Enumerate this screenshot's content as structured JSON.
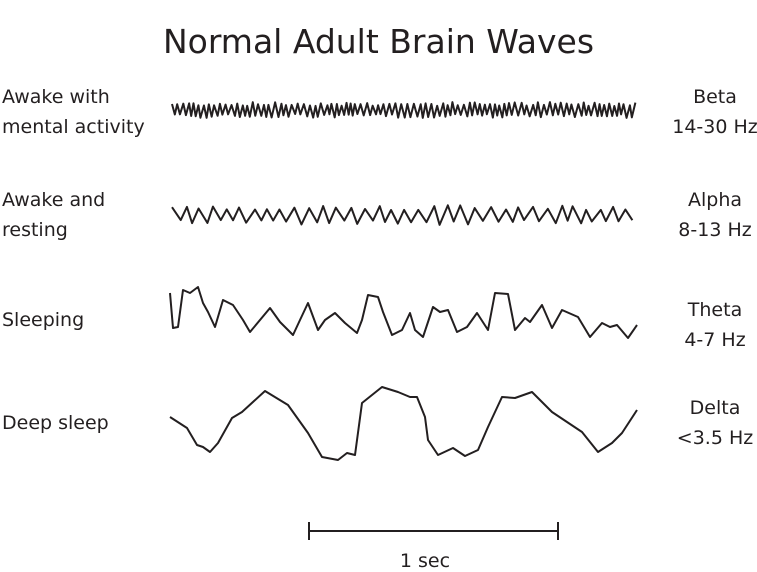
{
  "title": "Normal Adult Brain Waves",
  "rows": [
    {
      "state": [
        "Awake with",
        "mental activity"
      ],
      "wave": "Beta",
      "frequency": "14-30 Hz"
    },
    {
      "state": [
        "Awake and",
        "resting"
      ],
      "wave": "Alpha",
      "frequency": "8-13 Hz"
    },
    {
      "state": [
        "Sleeping"
      ],
      "wave": "Theta",
      "frequency": "4-7 Hz"
    },
    {
      "state": [
        "Deep sleep"
      ],
      "wave": "Delta",
      "frequency": "<3.5 Hz"
    }
  ],
  "scale_bar": {
    "label": "1 sec"
  },
  "stroke_color": "#231f20"
}
